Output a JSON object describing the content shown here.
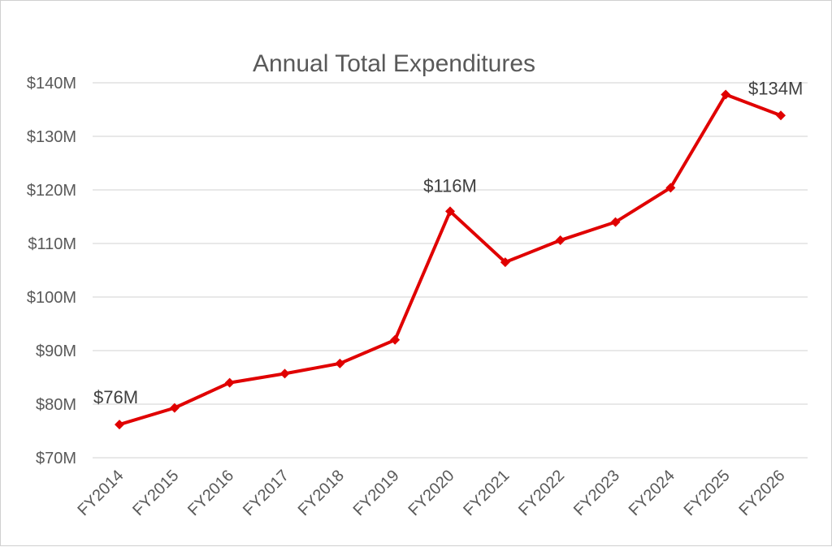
{
  "chart_data": {
    "type": "line",
    "title": "Annual Total Expenditures",
    "xlabel": "",
    "ylabel": "",
    "categories": [
      "FY2014",
      "FY2015",
      "FY2016",
      "FY2017",
      "FY2018",
      "FY2019",
      "FY2020",
      "FY2021",
      "FY2022",
      "FY2023",
      "FY2024",
      "FY2025",
      "FY2026"
    ],
    "series": [
      {
        "values": [
          76.2,
          79.3,
          84.0,
          85.7,
          87.6,
          92.0,
          116.0,
          106.5,
          110.6,
          114.0,
          120.4,
          137.8,
          133.9
        ],
        "color": "#e00000"
      }
    ],
    "ylim": [
      70,
      140
    ],
    "yticks": [
      70,
      80,
      90,
      100,
      110,
      120,
      130,
      140
    ],
    "ytick_labels": [
      "$70M",
      "$80M",
      "$90M",
      "$100M",
      "$110M",
      "$120M",
      "$130M",
      "$140M"
    ],
    "data_labels": [
      {
        "index": 0,
        "text": "$76M"
      },
      {
        "index": 6,
        "text": "$116M"
      },
      {
        "index": 12,
        "text": "$134M"
      }
    ],
    "grid": true,
    "legend": "none",
    "marker": "diamond"
  }
}
